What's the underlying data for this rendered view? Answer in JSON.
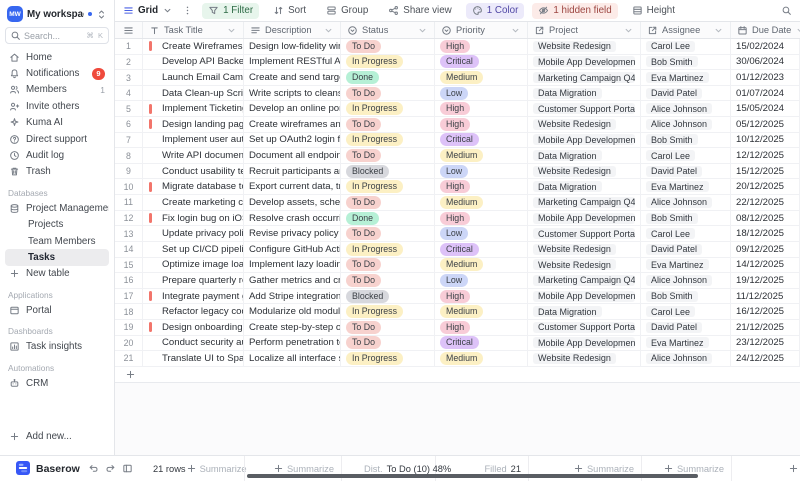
{
  "sidebar": {
    "workspace": {
      "initials": "MW",
      "name": "My workspace"
    },
    "search": {
      "placeholder": "Search...",
      "shortcut": "⌘ K"
    },
    "menu": [
      {
        "label": "Home",
        "icon": "home"
      },
      {
        "label": "Notifications",
        "icon": "bell",
        "badge": "9"
      },
      {
        "label": "Members",
        "icon": "users",
        "count": "1"
      },
      {
        "label": "Invite others",
        "icon": "user-plus"
      },
      {
        "label": "Kuma AI",
        "icon": "sparkle"
      },
      {
        "label": "Direct support",
        "icon": "help"
      },
      {
        "label": "Audit log",
        "icon": "history"
      },
      {
        "label": "Trash",
        "icon": "trash"
      }
    ],
    "databases_label": "Databases",
    "database": {
      "name": "Project Management",
      "icon": "database",
      "tables": [
        "Projects",
        "Team Members",
        "Tasks"
      ],
      "active_table": "Tasks"
    },
    "new_table_label": "New table",
    "applications_label": "Applications",
    "applications": [
      {
        "label": "Portal",
        "icon": "window"
      }
    ],
    "dashboards_label": "Dashboards",
    "dashboards": [
      {
        "label": "Task insights",
        "icon": "chart"
      }
    ],
    "automations_label": "Automations",
    "automations": [
      {
        "label": "CRM",
        "icon": "robot"
      }
    ],
    "add_new_label": "Add new..."
  },
  "toolbar": {
    "view_name": "Grid",
    "buttons": [
      {
        "label": "1 Filter",
        "icon": "filter",
        "tint": "green"
      },
      {
        "label": "Sort",
        "icon": "sort",
        "tint": ""
      },
      {
        "label": "Group",
        "icon": "group",
        "tint": ""
      },
      {
        "label": "Share view",
        "icon": "share",
        "tint": ""
      },
      {
        "label": "1 Color",
        "icon": "color",
        "tint": "purple"
      },
      {
        "label": "1 hidden field",
        "icon": "eye-off",
        "tint": "red"
      },
      {
        "label": "Height",
        "icon": "height",
        "tint": ""
      }
    ]
  },
  "table": {
    "columns": [
      {
        "key": "title",
        "label": "Task Title",
        "icon": "text-field"
      },
      {
        "key": "desc",
        "label": "Description",
        "icon": "long-text"
      },
      {
        "key": "status",
        "label": "Status",
        "icon": "select"
      },
      {
        "key": "priority",
        "label": "Priority",
        "icon": "select"
      },
      {
        "key": "project",
        "label": "Project",
        "icon": "link"
      },
      {
        "key": "assignee",
        "label": "Assignee",
        "icon": "link"
      },
      {
        "key": "due",
        "label": "Due Date",
        "icon": "calendar"
      }
    ],
    "rows": [
      {
        "num": 1,
        "flag": true,
        "title": "Create Wireframes",
        "desc": "Design low-fidelity wirefra...",
        "status": "To Do",
        "priority": "High",
        "project": "Website Redesign",
        "assignee": "Carol Lee",
        "due": "15/02/2024"
      },
      {
        "num": 2,
        "flag": false,
        "title": "Develop API Backend",
        "desc": "Implement RESTful API end...",
        "status": "In Progress",
        "priority": "Critical",
        "project": "Mobile App Development",
        "assignee": "Bob Smith",
        "due": "30/06/2024"
      },
      {
        "num": 3,
        "flag": false,
        "title": "Launch Email Campaign",
        "desc": "Create and send targeted ...",
        "status": "Done",
        "priority": "Medium",
        "project": "Marketing Campaign Q4",
        "assignee": "Eva Martinez",
        "due": "01/12/2023"
      },
      {
        "num": 4,
        "flag": false,
        "title": "Data Clean-up Script",
        "desc": "Write scripts to cleanse an...",
        "status": "To Do",
        "priority": "Low",
        "project": "Data Migration",
        "assignee": "David Patel",
        "due": "01/07/2024"
      },
      {
        "num": 5,
        "flag": true,
        "title": "Implement Ticketing System",
        "desc": "Develop an online portal all...",
        "status": "In Progress",
        "priority": "High",
        "project": "Customer Support Portal",
        "assignee": "Alice Johnson",
        "due": "15/05/2024"
      },
      {
        "num": 6,
        "flag": true,
        "title": "Design landing page",
        "desc": "Create wireframes and hig...",
        "status": "To Do",
        "priority": "High",
        "project": "Website Redesign",
        "assignee": "Alice Johnson",
        "due": "05/12/2025"
      },
      {
        "num": 7,
        "flag": false,
        "title": "Implement user authenticat...",
        "desc": "Set up OAuth2 login flow, p...",
        "status": "In Progress",
        "priority": "Critical",
        "project": "Mobile App Development",
        "assignee": "Bob Smith",
        "due": "10/12/2025"
      },
      {
        "num": 8,
        "flag": false,
        "title": "Write API documentation",
        "desc": "Document all endpoints for...",
        "status": "To Do",
        "priority": "Medium",
        "project": "Data Migration",
        "assignee": "Carol Lee",
        "due": "12/12/2025"
      },
      {
        "num": 9,
        "flag": false,
        "title": "Conduct usability testing",
        "desc": "Recruit participants and ru...",
        "status": "Blocked",
        "priority": "Low",
        "project": "Website Redesign",
        "assignee": "David Patel",
        "due": "15/12/2025"
      },
      {
        "num": 10,
        "flag": true,
        "title": "Migrate database to Postgr...",
        "desc": "Export current data, transf...",
        "status": "In Progress",
        "priority": "High",
        "project": "Data Migration",
        "assignee": "Eva Martinez",
        "due": "20/12/2025"
      },
      {
        "num": 11,
        "flag": false,
        "title": "Create marketing campaig...",
        "desc": "Develop assets, schedule e...",
        "status": "To Do",
        "priority": "Medium",
        "project": "Marketing Campaign Q4",
        "assignee": "Alice Johnson",
        "due": "22/12/2025"
      },
      {
        "num": 12,
        "flag": true,
        "title": "Fix login bug on iOS",
        "desc": "Resolve crash occurring w...",
        "status": "Done",
        "priority": "High",
        "project": "Mobile App Development",
        "assignee": "Bob Smith",
        "due": "08/12/2025"
      },
      {
        "num": 13,
        "flag": false,
        "title": "Update privacy policy",
        "desc": "Revise privacy policy to co...",
        "status": "To Do",
        "priority": "Low",
        "project": "Customer Support Portal",
        "assignee": "Carol Lee",
        "due": "18/12/2025"
      },
      {
        "num": 14,
        "flag": false,
        "title": "Set up CI/CD pipeline",
        "desc": "Configure GitHub Actions f...",
        "status": "In Progress",
        "priority": "Critical",
        "project": "Website Redesign",
        "assignee": "David Patel",
        "due": "09/12/2025"
      },
      {
        "num": 15,
        "flag": false,
        "title": "Optimize image loading",
        "desc": "Implement lazy loading and...",
        "status": "To Do",
        "priority": "Medium",
        "project": "Website Redesign",
        "assignee": "Eva Martinez",
        "due": "14/12/2025"
      },
      {
        "num": 16,
        "flag": false,
        "title": "Prepare quarterly report",
        "desc": "Gather metrics and create ...",
        "status": "To Do",
        "priority": "Low",
        "project": "Marketing Campaign Q4",
        "assignee": "Alice Johnson",
        "due": "19/12/2025"
      },
      {
        "num": 17,
        "flag": true,
        "title": "Integrate payment gateway",
        "desc": "Add Stripe integration for s...",
        "status": "Blocked",
        "priority": "High",
        "project": "Mobile App Development",
        "assignee": "Bob Smith",
        "due": "11/12/2025"
      },
      {
        "num": 18,
        "flag": false,
        "title": "Refactor legacy codebase",
        "desc": "Modularize old modules an...",
        "status": "In Progress",
        "priority": "Medium",
        "project": "Data Migration",
        "assignee": "Carol Lee",
        "due": "16/12/2025"
      },
      {
        "num": 19,
        "flag": true,
        "title": "Design onboarding flow",
        "desc": "Create step-by-step onboa...",
        "status": "To Do",
        "priority": "High",
        "project": "Customer Support Portal",
        "assignee": "David Patel",
        "due": "21/12/2025"
      },
      {
        "num": 20,
        "flag": false,
        "title": "Conduct security audit",
        "desc": "Perform penetration testin...",
        "status": "To Do",
        "priority": "Critical",
        "project": "Mobile App Development",
        "assignee": "Eva Martinez",
        "due": "23/12/2025"
      },
      {
        "num": 21,
        "flag": false,
        "title": "Translate UI to Spanish",
        "desc": "Localize all interface string...",
        "status": "In Progress",
        "priority": "Medium",
        "project": "Website Redesign",
        "assignee": "Alice Johnson",
        "due": "24/12/2025"
      }
    ]
  },
  "colors": {
    "status": {
      "To Do": "#f7d2ce",
      "In Progress": "#fcf0c4",
      "Done": "#b6f0d6",
      "Blocked": "#d7d8dd"
    },
    "priority": {
      "High": "#f8ccd7",
      "Critical": "#ddc2f8",
      "Medium": "#fcf0c4",
      "Low": "#ccd6f7"
    },
    "flag": "#f2756b",
    "accent_blue": "#4b61e4"
  },
  "footer": {
    "brand": "Baserow",
    "row_count": "21 rows",
    "summarize_label": "Summarize",
    "status_summary": {
      "prefix": "Dist.",
      "value": "To Do (10) 48%"
    },
    "priority_summary": {
      "prefix": "Filled",
      "value": "21"
    }
  }
}
